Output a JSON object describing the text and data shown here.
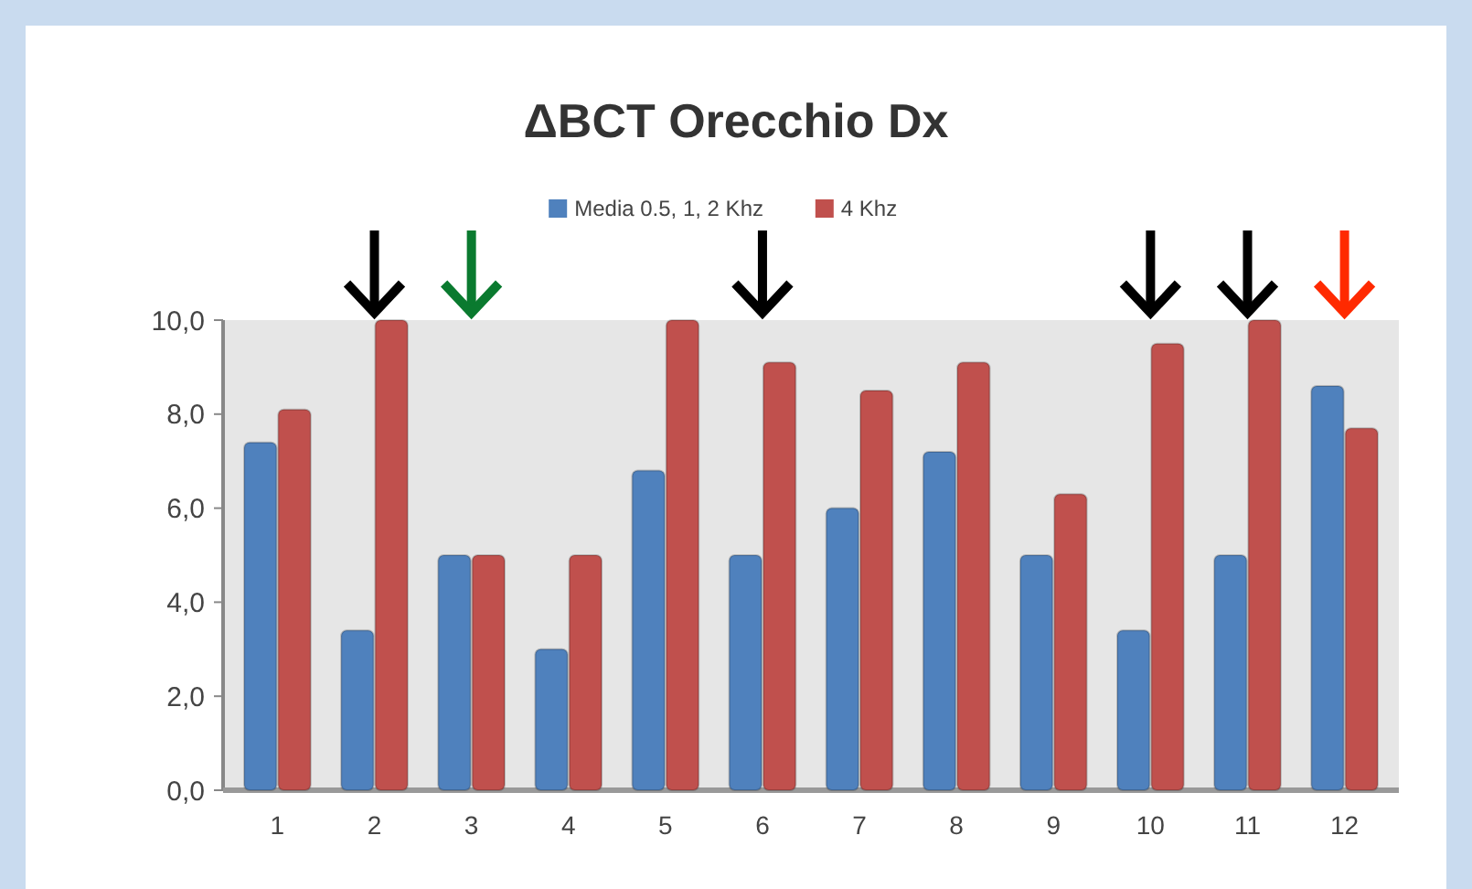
{
  "chart_data": {
    "type": "bar",
    "title": "ΔBCT Orecchio Dx",
    "categories": [
      "1",
      "2",
      "3",
      "4",
      "5",
      "6",
      "7",
      "8",
      "9",
      "10",
      "11",
      "12"
    ],
    "series": [
      {
        "name": "Media 0.5, 1, 2 Khz",
        "color": "#4f81bd",
        "values": [
          7.4,
          3.4,
          5.0,
          3.0,
          6.8,
          5.0,
          6.0,
          7.2,
          5.0,
          3.4,
          5.0,
          8.6
        ]
      },
      {
        "name": "4 Khz",
        "color": "#c0504d",
        "values": [
          8.1,
          10.0,
          5.0,
          5.0,
          10.0,
          9.1,
          8.5,
          9.1,
          6.3,
          9.5,
          10.0,
          7.7
        ]
      }
    ],
    "ylim": [
      0,
      10
    ],
    "yticks": [
      {
        "value": 0,
        "label": "0,0"
      },
      {
        "value": 2,
        "label": "2,0"
      },
      {
        "value": 4,
        "label": "4,0"
      },
      {
        "value": 6,
        "label": "6,0"
      },
      {
        "value": 8,
        "label": "8,0"
      },
      {
        "value": 10,
        "label": "10,0"
      }
    ],
    "grid": false,
    "legend": "top"
  }
}
